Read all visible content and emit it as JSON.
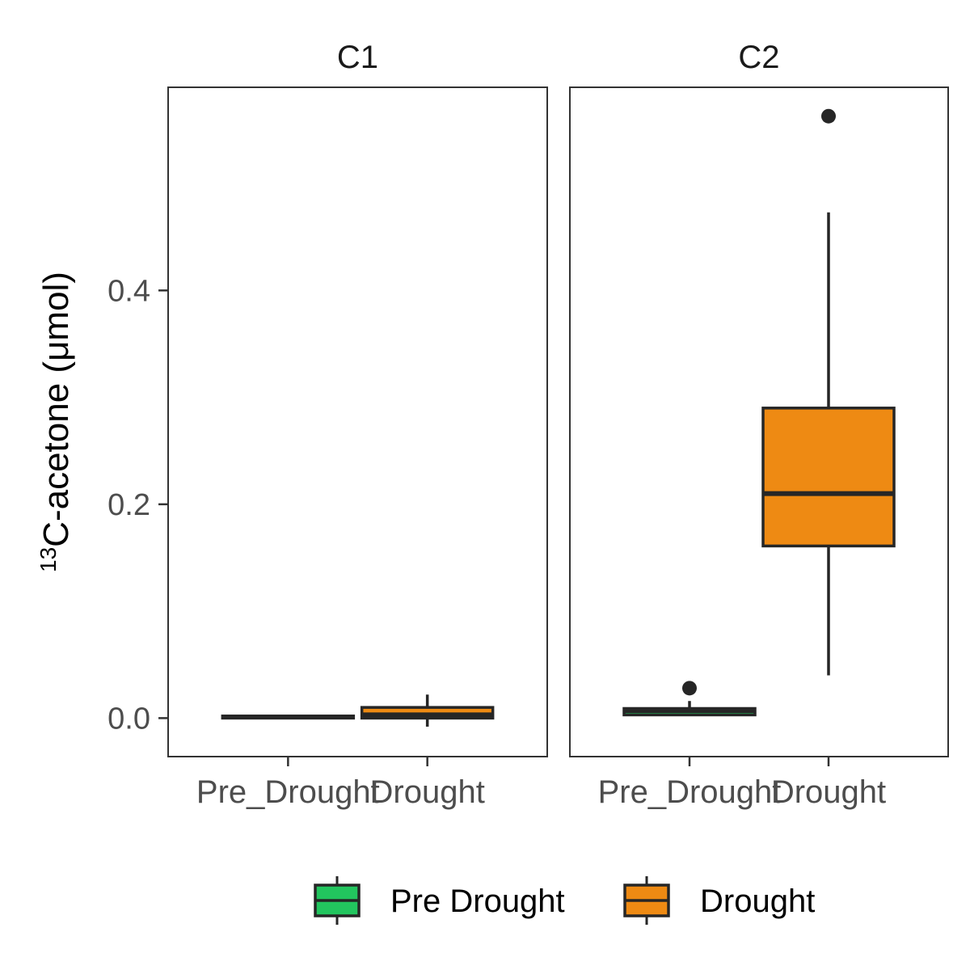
{
  "chart_data": {
    "type": "boxplot",
    "ylabel": {
      "superscript": "13",
      "text": "C-acetone (μmol)"
    },
    "ylim": [
      -0.036,
      0.59
    ],
    "y_ticks": [
      {
        "value": 0.0,
        "label": "0.0"
      },
      {
        "value": 0.2,
        "label": "0.2"
      },
      {
        "value": 0.4,
        "label": "0.4"
      }
    ],
    "grid": false,
    "legend": {
      "placement": "bottom",
      "entries": [
        {
          "label": "Pre Drought",
          "color": "#22c55e"
        },
        {
          "label": "Drought",
          "color": "#ee8a13"
        }
      ]
    },
    "box_outline_color": "#262626",
    "panels": [
      {
        "title": "C1",
        "categories": [
          "Pre_Drought",
          "Drought"
        ],
        "boxes": [
          {
            "category": "Pre_Drought",
            "group": "Pre Drought",
            "min": 0.0,
            "q1": 0.0,
            "median": 0.001,
            "q3": 0.002,
            "max": 0.003,
            "outliers": []
          },
          {
            "category": "Drought",
            "group": "Drought",
            "min": -0.008,
            "q1": 0.0,
            "median": 0.003,
            "q3": 0.01,
            "max": 0.022,
            "outliers": []
          }
        ]
      },
      {
        "title": "C2",
        "categories": [
          "Pre_Drought",
          "Drought"
        ],
        "boxes": [
          {
            "category": "Pre_Drought",
            "group": "Pre Drought",
            "min": 0.002,
            "q1": 0.003,
            "median": 0.007,
            "q3": 0.009,
            "max": 0.016,
            "outliers": [
              0.028
            ]
          },
          {
            "category": "Drought",
            "group": "Drought",
            "min": 0.04,
            "q1": 0.161,
            "median": 0.21,
            "q3": 0.29,
            "max": 0.473,
            "outliers": [
              0.563
            ]
          }
        ]
      }
    ]
  }
}
